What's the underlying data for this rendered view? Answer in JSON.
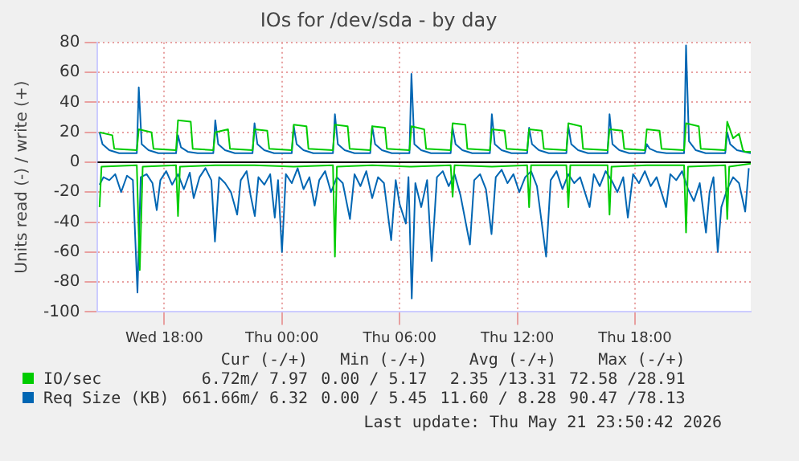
{
  "chart_data": {
    "type": "line",
    "title": "IOs for /dev/sda - by day",
    "ylabel": "Units read (-) / write (+)",
    "xlim": [
      "2026-05-20T14:36",
      "2026-05-21T23:54"
    ],
    "xticks": [
      {
        "value": "2026-05-20T18:00",
        "label": "Wed 18:00"
      },
      {
        "value": "2026-05-21T00:00",
        "label": "Thu 00:00"
      },
      {
        "value": "2026-05-21T06:00",
        "label": "Thu 06:00"
      },
      {
        "value": "2026-05-21T12:00",
        "label": "Thu 12:00"
      },
      {
        "value": "2026-05-21T18:00",
        "label": "Thu 18:00"
      }
    ],
    "ylim": [
      -100,
      80
    ],
    "yticks": [
      -100,
      -80,
      -60,
      -40,
      -20,
      0,
      20,
      40,
      60,
      80
    ],
    "grid": true,
    "legend": "bottom",
    "ref_lines": [
      {
        "axis": "y",
        "value": 0,
        "color": "#000000"
      }
    ],
    "series": [
      {
        "name": "IO/sec",
        "color": "#00cc00",
        "x": [
          "2026-05-20T14:42",
          "2026-05-20T15:21",
          "2026-05-20T15:27",
          "2026-05-20T16:36",
          "2026-05-20T16:42",
          "2026-05-20T17:21",
          "2026-05-20T17:27",
          "2026-05-20T18:36",
          "2026-05-20T18:42",
          "2026-05-20T19:21",
          "2026-05-20T19:27",
          "2026-05-20T20:30",
          "2026-05-20T20:36",
          "2026-05-20T21:15",
          "2026-05-20T21:21",
          "2026-05-20T22:30",
          "2026-05-20T22:36",
          "2026-05-20T23:15",
          "2026-05-20T23:21",
          "2026-05-21T00:30",
          "2026-05-21T00:36",
          "2026-05-21T01:15",
          "2026-05-21T01:21",
          "2026-05-21T02:36",
          "2026-05-21T02:42",
          "2026-05-21T03:21",
          "2026-05-21T03:27",
          "2026-05-21T04:30",
          "2026-05-21T04:36",
          "2026-05-21T05:15",
          "2026-05-21T05:21",
          "2026-05-21T06:30",
          "2026-05-21T06:36",
          "2026-05-21T07:15",
          "2026-05-21T07:21",
          "2026-05-21T08:36",
          "2026-05-21T08:42",
          "2026-05-21T09:21",
          "2026-05-21T09:27",
          "2026-05-21T10:36",
          "2026-05-21T10:42",
          "2026-05-21T11:21",
          "2026-05-21T11:27",
          "2026-05-21T12:30",
          "2026-05-21T12:36",
          "2026-05-21T13:15",
          "2026-05-21T13:21",
          "2026-05-21T14:30",
          "2026-05-21T14:36",
          "2026-05-21T15:15",
          "2026-05-21T15:21",
          "2026-05-21T16:36",
          "2026-05-21T16:42",
          "2026-05-21T17:21",
          "2026-05-21T17:27",
          "2026-05-21T18:30",
          "2026-05-21T18:36",
          "2026-05-21T19:15",
          "2026-05-21T19:21",
          "2026-05-21T20:30",
          "2026-05-21T20:36",
          "2026-05-21T21:15",
          "2026-05-21T21:21",
          "2026-05-21T22:36",
          "2026-05-21T22:42",
          "2026-05-21T23:00",
          "2026-05-21T23:18",
          "2026-05-21T23:30",
          "2026-05-21T23:36",
          "2026-05-21T23:54"
        ],
        "values": [
          20,
          18,
          9,
          8,
          22,
          20,
          9,
          8,
          28,
          27,
          9,
          8,
          20,
          22,
          9,
          8,
          22,
          21,
          9,
          8,
          25,
          24,
          9,
          8,
          25,
          24,
          9,
          8,
          24,
          23,
          9,
          8,
          24,
          22,
          9,
          8,
          26,
          25,
          9,
          8,
          22,
          21,
          9,
          8,
          22,
          21,
          9,
          8,
          26,
          24,
          9,
          8,
          22,
          21,
          9,
          8,
          22,
          21,
          9,
          8,
          26,
          24,
          9,
          8,
          27,
          16,
          19,
          8,
          7,
          7
        ]
      },
      {
        "name": "Req Size (KB)",
        "color": "#0066b3",
        "x": [
          "2026-05-20T14:42",
          "2026-05-20T14:51",
          "2026-05-20T15:12",
          "2026-05-20T15:42",
          "2026-05-20T16:36",
          "2026-05-20T16:42",
          "2026-05-20T16:51",
          "2026-05-20T17:12",
          "2026-05-20T17:42",
          "2026-05-20T18:36",
          "2026-05-20T18:42",
          "2026-05-20T18:51",
          "2026-05-20T19:12",
          "2026-05-20T19:42",
          "2026-05-20T20:30",
          "2026-05-20T20:36",
          "2026-05-20T20:45",
          "2026-05-20T21:06",
          "2026-05-20T21:36",
          "2026-05-20T22:30",
          "2026-05-20T22:36",
          "2026-05-20T22:45",
          "2026-05-20T23:06",
          "2026-05-20T23:36",
          "2026-05-21T00:30",
          "2026-05-21T00:36",
          "2026-05-21T00:45",
          "2026-05-21T01:06",
          "2026-05-21T01:36",
          "2026-05-21T02:36",
          "2026-05-21T02:42",
          "2026-05-21T02:51",
          "2026-05-21T03:12",
          "2026-05-21T03:42",
          "2026-05-21T04:30",
          "2026-05-21T04:36",
          "2026-05-21T04:45",
          "2026-05-21T05:06",
          "2026-05-21T05:36",
          "2026-05-21T06:30",
          "2026-05-21T06:36",
          "2026-05-21T06:45",
          "2026-05-21T07:06",
          "2026-05-21T07:36",
          "2026-05-21T08:36",
          "2026-05-21T08:42",
          "2026-05-21T08:51",
          "2026-05-21T09:12",
          "2026-05-21T09:42",
          "2026-05-21T10:36",
          "2026-05-21T10:42",
          "2026-05-21T10:51",
          "2026-05-21T11:12",
          "2026-05-21T11:42",
          "2026-05-21T12:30",
          "2026-05-21T12:36",
          "2026-05-21T12:45",
          "2026-05-21T13:06",
          "2026-05-21T13:36",
          "2026-05-21T14:30",
          "2026-05-21T14:36",
          "2026-05-21T14:45",
          "2026-05-21T15:06",
          "2026-05-21T15:36",
          "2026-05-21T16:36",
          "2026-05-21T16:42",
          "2026-05-21T16:51",
          "2026-05-21T17:12",
          "2026-05-21T17:42",
          "2026-05-21T18:30",
          "2026-05-21T18:36",
          "2026-05-21T18:45",
          "2026-05-21T19:06",
          "2026-05-21T19:36",
          "2026-05-21T20:30",
          "2026-05-21T20:36",
          "2026-05-21T20:45",
          "2026-05-21T21:06",
          "2026-05-21T21:36",
          "2026-05-21T22:36",
          "2026-05-21T22:42",
          "2026-05-21T22:51",
          "2026-05-21T23:12",
          "2026-05-21T23:54"
        ],
        "values": [
          20,
          12,
          8,
          6,
          6,
          50,
          12,
          8,
          6,
          6,
          18,
          10,
          7,
          6,
          6,
          28,
          12,
          8,
          6,
          6,
          26,
          12,
          8,
          6,
          6,
          24,
          12,
          8,
          6,
          6,
          32,
          12,
          8,
          6,
          6,
          24,
          12,
          8,
          6,
          6,
          59,
          12,
          8,
          6,
          6,
          23,
          12,
          8,
          6,
          6,
          32,
          12,
          8,
          6,
          6,
          23,
          12,
          8,
          6,
          6,
          24,
          12,
          8,
          6,
          6,
          32,
          12,
          8,
          6,
          6,
          12,
          9,
          7,
          6,
          6,
          78,
          14,
          8,
          6,
          6,
          20,
          12,
          8,
          6
        ]
      },
      {
        "color": "#00cc00",
        "x": [
          "2026-05-20T14:42",
          "2026-05-20T14:48",
          "2026-05-20T16:36",
          "2026-05-20T16:45",
          "2026-05-20T16:54",
          "2026-05-20T18:36",
          "2026-05-20T18:42",
          "2026-05-20T18:48",
          "2026-05-20T20:36",
          "2026-05-20T22:36",
          "2026-05-21T00:36",
          "2026-05-21T02:36",
          "2026-05-21T02:42",
          "2026-05-21T02:48",
          "2026-05-21T04:36",
          "2026-05-21T06:36",
          "2026-05-21T08:36",
          "2026-05-21T08:42",
          "2026-05-21T08:48",
          "2026-05-21T10:42",
          "2026-05-21T12:30",
          "2026-05-21T12:36",
          "2026-05-21T12:42",
          "2026-05-21T14:30",
          "2026-05-21T14:36",
          "2026-05-21T14:42",
          "2026-05-21T16:36",
          "2026-05-21T16:42",
          "2026-05-21T16:48",
          "2026-05-21T18:36",
          "2026-05-21T20:30",
          "2026-05-21T20:36",
          "2026-05-21T20:42",
          "2026-05-21T22:36",
          "2026-05-21T22:42",
          "2026-05-21T22:48",
          "2026-05-21T23:54"
        ],
        "values": [
          -30,
          -3,
          -2,
          -72,
          -3,
          -2,
          -36,
          -3,
          -2,
          -2,
          -3,
          -2,
          -63,
          -3,
          -2,
          -3,
          -2,
          -23,
          -2,
          -3,
          -2,
          -30,
          -2,
          -2,
          -30,
          -2,
          -2,
          -35,
          -3,
          -2,
          -2,
          -47,
          -3,
          -2,
          -38,
          -3,
          -1
        ]
      },
      {
        "color": "#0066b3",
        "x": [
          "2026-05-20T14:42",
          "2026-05-20T14:54",
          "2026-05-20T15:12",
          "2026-05-20T15:30",
          "2026-05-20T15:48",
          "2026-05-20T16:06",
          "2026-05-20T16:24",
          "2026-05-20T16:38",
          "2026-05-20T16:48",
          "2026-05-20T17:06",
          "2026-05-20T17:24",
          "2026-05-20T17:37",
          "2026-05-20T17:48",
          "2026-05-20T18:06",
          "2026-05-20T18:24",
          "2026-05-20T18:42",
          "2026-05-20T19:00",
          "2026-05-20T19:18",
          "2026-05-20T19:30",
          "2026-05-20T19:48",
          "2026-05-20T20:06",
          "2026-05-20T20:24",
          "2026-05-20T20:35",
          "2026-05-20T20:48",
          "2026-05-20T21:06",
          "2026-05-20T21:24",
          "2026-05-20T21:43",
          "2026-05-20T21:54",
          "2026-05-20T22:12",
          "2026-05-20T22:24",
          "2026-05-20T22:37",
          "2026-05-20T22:48",
          "2026-05-20T23:06",
          "2026-05-20T23:24",
          "2026-05-20T23:38",
          "2026-05-20T23:48",
          "2026-05-21T00:00",
          "2026-05-21T00:12",
          "2026-05-21T00:30",
          "2026-05-21T00:48",
          "2026-05-21T01:06",
          "2026-05-21T01:24",
          "2026-05-21T01:40",
          "2026-05-21T01:54",
          "2026-05-21T02:12",
          "2026-05-21T02:30",
          "2026-05-21T02:48",
          "2026-05-21T03:06",
          "2026-05-21T03:28",
          "2026-05-21T03:42",
          "2026-05-21T04:00",
          "2026-05-21T04:18",
          "2026-05-21T04:36",
          "2026-05-21T04:54",
          "2026-05-21T05:12",
          "2026-05-21T05:34",
          "2026-05-21T05:48",
          "2026-05-21T06:00",
          "2026-05-21T06:19",
          "2026-05-21T06:27",
          "2026-05-21T06:37",
          "2026-05-21T06:48",
          "2026-05-21T07:06",
          "2026-05-21T07:24",
          "2026-05-21T07:38",
          "2026-05-21T07:54",
          "2026-05-21T08:12",
          "2026-05-21T08:30",
          "2026-05-21T08:48",
          "2026-05-21T09:06",
          "2026-05-21T09:35",
          "2026-05-21T09:48",
          "2026-05-21T10:06",
          "2026-05-21T10:24",
          "2026-05-21T10:41",
          "2026-05-21T10:54",
          "2026-05-21T11:12",
          "2026-05-21T11:30",
          "2026-05-21T11:48",
          "2026-05-21T12:06",
          "2026-05-21T12:24",
          "2026-05-21T12:42",
          "2026-05-21T13:00",
          "2026-05-21T13:28",
          "2026-05-21T13:42",
          "2026-05-21T14:00",
          "2026-05-21T14:18",
          "2026-05-21T14:36",
          "2026-05-21T14:54",
          "2026-05-21T15:12",
          "2026-05-21T15:41",
          "2026-05-21T15:54",
          "2026-05-21T16:12",
          "2026-05-21T16:30",
          "2026-05-21T16:48",
          "2026-05-21T17:06",
          "2026-05-21T17:24",
          "2026-05-21T17:38",
          "2026-05-21T17:54",
          "2026-05-21T18:12",
          "2026-05-21T18:30",
          "2026-05-21T18:48",
          "2026-05-21T19:06",
          "2026-05-21T19:35",
          "2026-05-21T19:48",
          "2026-05-21T20:06",
          "2026-05-21T20:24",
          "2026-05-21T20:42",
          "2026-05-21T21:00",
          "2026-05-21T21:18",
          "2026-05-21T21:37",
          "2026-05-21T21:48",
          "2026-05-21T22:00",
          "2026-05-21T22:13",
          "2026-05-21T22:24",
          "2026-05-21T22:42",
          "2026-05-21T23:00",
          "2026-05-21T23:18",
          "2026-05-21T23:37",
          "2026-05-21T23:48"
        ],
        "values": [
          -15,
          -10,
          -12,
          -8,
          -20,
          -9,
          -12,
          -87,
          -10,
          -8,
          -14,
          -32,
          -12,
          -6,
          -15,
          -8,
          -18,
          -7,
          -24,
          -10,
          -4,
          -12,
          -53,
          -10,
          -14,
          -20,
          -35,
          -12,
          -6,
          -22,
          -36,
          -10,
          -15,
          -8,
          -37,
          -12,
          -60,
          -8,
          -14,
          -4,
          -18,
          -10,
          -29,
          -12,
          -6,
          -20,
          -10,
          -14,
          -38,
          -8,
          -16,
          -6,
          -24,
          -10,
          -14,
          -52,
          -12,
          -28,
          -41,
          -10,
          -91,
          -14,
          -30,
          -12,
          -66,
          -10,
          -6,
          -16,
          -8,
          -22,
          -55,
          -12,
          -8,
          -18,
          -48,
          -10,
          -5,
          -14,
          -8,
          -20,
          -10,
          -6,
          -16,
          -63,
          -12,
          -6,
          -18,
          -8,
          -14,
          -10,
          -30,
          -8,
          -16,
          -6,
          -12,
          -20,
          -10,
          -37,
          -8,
          -14,
          -6,
          -16,
          -10,
          -30,
          -8,
          -12,
          -6,
          -18,
          -26,
          -14,
          -47,
          -20,
          -10,
          -60,
          -30,
          -18,
          -10,
          -14,
          -33,
          -4
        ]
      }
    ],
    "annotations": [
      "Cur (-/+)",
      "Min (-/+)",
      "Avg (-/+)",
      "Max (-/+)",
      "6.72m/ 7.97",
      "0.00 / 5.17",
      "2.35 /13.31",
      "72.58 /28.91",
      "661.66m/ 6.32",
      "0.00 / 5.45",
      "11.60 / 8.28",
      "90.47 /78.13",
      "Last update: Thu May 21 23:50:42 2026"
    ]
  }
}
